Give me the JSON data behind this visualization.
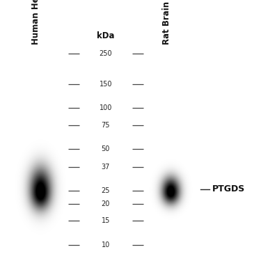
{
  "background_color": "#ffffff",
  "lane_bg_color": "#aaaaaa",
  "lane1_label": "Human Heart",
  "lane2_label": "Rat Brain",
  "kda_label": "kDa",
  "marker_label": "PTGDS",
  "ladder_values": [
    250,
    150,
    100,
    75,
    50,
    37,
    25,
    20,
    15,
    10
  ],
  "lane1_band_kda": 26.5,
  "lane2_band_kda": 25.5,
  "lane1_band_intensity": 0.95,
  "lane2_band_intensity": 0.95,
  "ylim_log_min": 8.5,
  "ylim_log_max": 280,
  "fig_width": 3.75,
  "fig_height": 3.75,
  "dpi": 100,
  "lane1_label_fontsize": 8.5,
  "lane2_label_fontsize": 8.5,
  "kda_fontsize": 8.5,
  "ladder_fontsize": 7,
  "marker_fontsize": 9
}
